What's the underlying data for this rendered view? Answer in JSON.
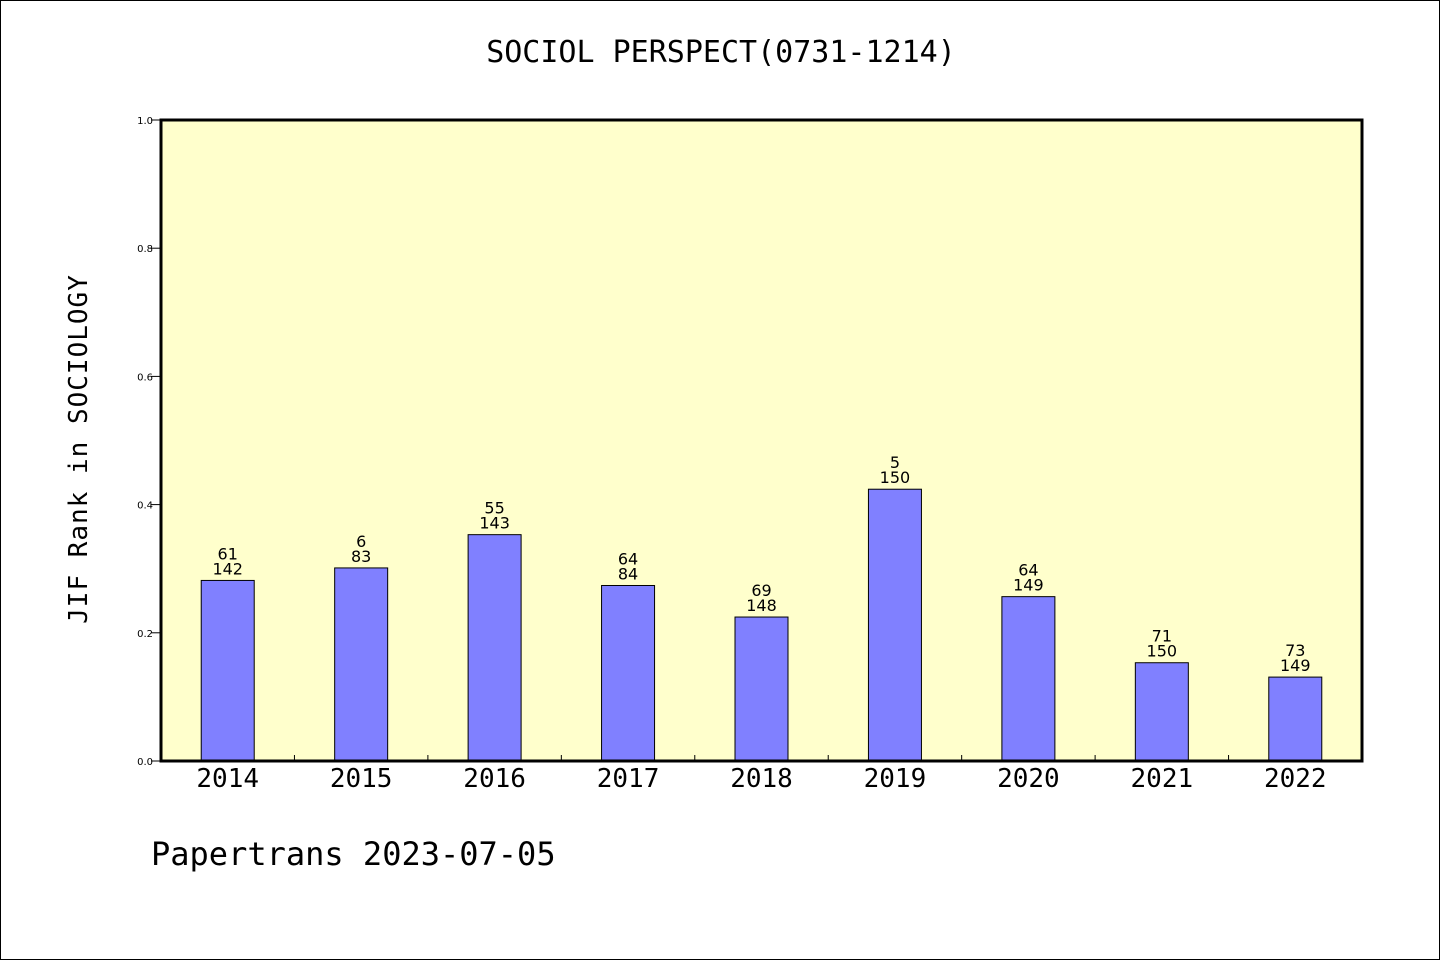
{
  "chart_data": {
    "type": "bar",
    "title": "SOCIOL PERSPECT(0731-1214)",
    "ylabel": "JIF Rank in SOCIOLOGY",
    "xlabel": "",
    "ylim": [
      0,
      1.0
    ],
    "yticks": [
      "0.0",
      "0.2",
      "0.4",
      "0.6",
      "0.8",
      "1.0"
    ],
    "categories": [
      "2014",
      "2015",
      "2016",
      "2017",
      "2018",
      "2019",
      "2020",
      "2021",
      "2022"
    ],
    "values": [
      0.2817,
      0.3012,
      0.3531,
      0.2738,
      0.2246,
      0.424,
      0.2564,
      0.1533,
      0.1309
    ],
    "rank_labels": [
      "61",
      "6",
      "55",
      "64",
      "69",
      "5",
      "64",
      "71",
      "73"
    ],
    "total_labels": [
      "142",
      "83",
      "143",
      "84",
      "148",
      "150",
      "149",
      "150",
      "149"
    ],
    "plot_background": "#ffffcc",
    "bar_color": "#8080ff",
    "grid": false,
    "legend": "none"
  },
  "footer": "Papertrans 2023-07-05"
}
